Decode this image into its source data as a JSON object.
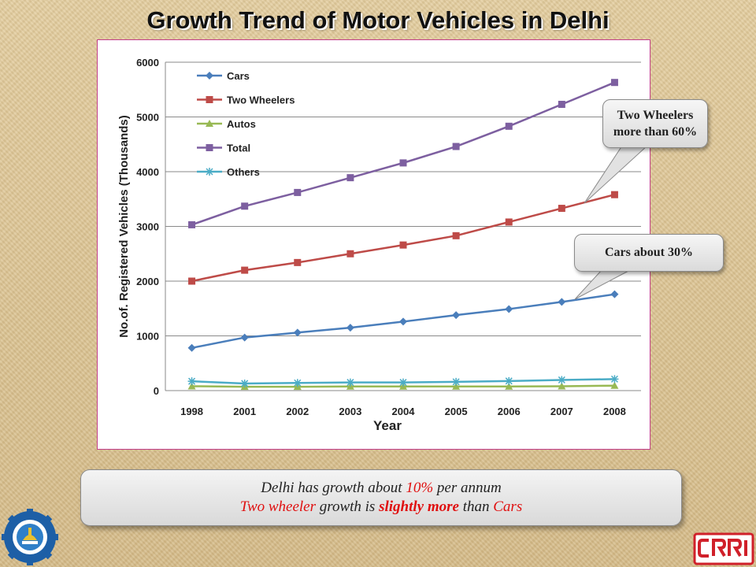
{
  "title": "Growth Trend of Motor Vehicles in Delhi",
  "chart_data": {
    "type": "line",
    "x": [
      "1998",
      "2001",
      "2002",
      "2003",
      "2004",
      "2005",
      "2006",
      "2007",
      "2008"
    ],
    "xlabel": "Year",
    "ylabel": "No.of. Registered Vehicles (Thousands)",
    "ylim": [
      0,
      6000
    ],
    "yticks": [
      0,
      1000,
      2000,
      3000,
      4000,
      5000,
      6000
    ],
    "grid": true,
    "legend_position": "top-left",
    "series": [
      {
        "name": "Cars",
        "color": "#4a7ebb",
        "marker": "diamond",
        "values": [
          780,
          970,
          1060,
          1150,
          1260,
          1380,
          1490,
          1620,
          1760
        ]
      },
      {
        "name": "Two Wheelers",
        "color": "#be4b48",
        "marker": "square",
        "values": [
          2000,
          2200,
          2340,
          2500,
          2660,
          2830,
          3080,
          3330,
          3580
        ]
      },
      {
        "name": "Autos",
        "color": "#98b954",
        "marker": "triangle",
        "values": [
          80,
          70,
          70,
          75,
          75,
          75,
          75,
          80,
          90
        ]
      },
      {
        "name": "Total",
        "color": "#7d5fa0",
        "marker": "square",
        "values": [
          3030,
          3370,
          3620,
          3890,
          4160,
          4460,
          4830,
          5230,
          5630
        ]
      },
      {
        "name": "Others",
        "color": "#4bacc6",
        "marker": "star",
        "values": [
          170,
          130,
          140,
          150,
          150,
          160,
          175,
          195,
          210
        ]
      }
    ]
  },
  "callouts": {
    "two_wheelers_line1": "Two Wheelers",
    "two_wheelers_line2": "more than 60%",
    "cars": "Cars about 30%"
  },
  "summary": {
    "line1_a": "Delhi has growth about ",
    "line1_b": "10%",
    "line1_c": " per annum",
    "line2_a": "Two wheeler",
    "line2_b": " growth is ",
    "line2_c": "slightly more",
    "line2_d": " than ",
    "line2_e": "Cars"
  },
  "logos": {
    "left": "csir-gear-logo",
    "right": "crri-logo"
  }
}
